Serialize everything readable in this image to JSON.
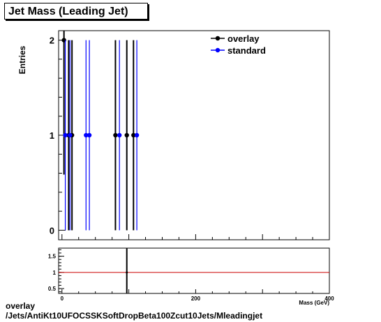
{
  "title": "Jet Mass (Leading Jet)",
  "footer": {
    "line1": "overlay",
    "line2": "/Jets/AntiKt10UFOCSSKSoftDropBeta100Zcut10Jets/Mleadingjet"
  },
  "colors": {
    "overlay": "#000000",
    "standard": "#0000ff",
    "ratio_line": "#cc0000"
  },
  "chart_data": [
    {
      "type": "scatter",
      "title": "Jet Mass (Leading Jet)",
      "ylabel": "Entries",
      "xlim": [
        -5,
        400
      ],
      "ylim": [
        -0.1,
        2.1
      ],
      "y_ticks": [
        0,
        1,
        2
      ],
      "legend_position": "top-right",
      "series": [
        {
          "name": "overlay",
          "points": [
            {
              "x": 3,
              "y": 2
            },
            {
              "x": 10,
              "y": 1
            },
            {
              "x": 15,
              "y": 1
            },
            {
              "x": 80,
              "y": 1
            },
            {
              "x": 97,
              "y": 1
            },
            {
              "x": 107,
              "y": 1
            }
          ]
        },
        {
          "name": "standard",
          "points": [
            {
              "x": 5,
              "y": 1
            },
            {
              "x": 12,
              "y": 1
            },
            {
              "x": 36,
              "y": 1
            },
            {
              "x": 41,
              "y": 1
            },
            {
              "x": 86,
              "y": 1
            },
            {
              "x": 112,
              "y": 1
            }
          ]
        }
      ]
    },
    {
      "type": "scatter",
      "xlabel": "Mass (GeV)",
      "xlim": [
        -5,
        400
      ],
      "ylim": [
        0.35,
        1.75
      ],
      "x_ticks": [
        0,
        200,
        400
      ],
      "y_ticks": [
        0.5,
        1,
        1.5
      ],
      "y_tick_labels": [
        "0.5",
        "1",
        "1.5"
      ],
      "reference_line": 1,
      "points": [
        {
          "x": 97,
          "y": 1
        }
      ]
    }
  ]
}
